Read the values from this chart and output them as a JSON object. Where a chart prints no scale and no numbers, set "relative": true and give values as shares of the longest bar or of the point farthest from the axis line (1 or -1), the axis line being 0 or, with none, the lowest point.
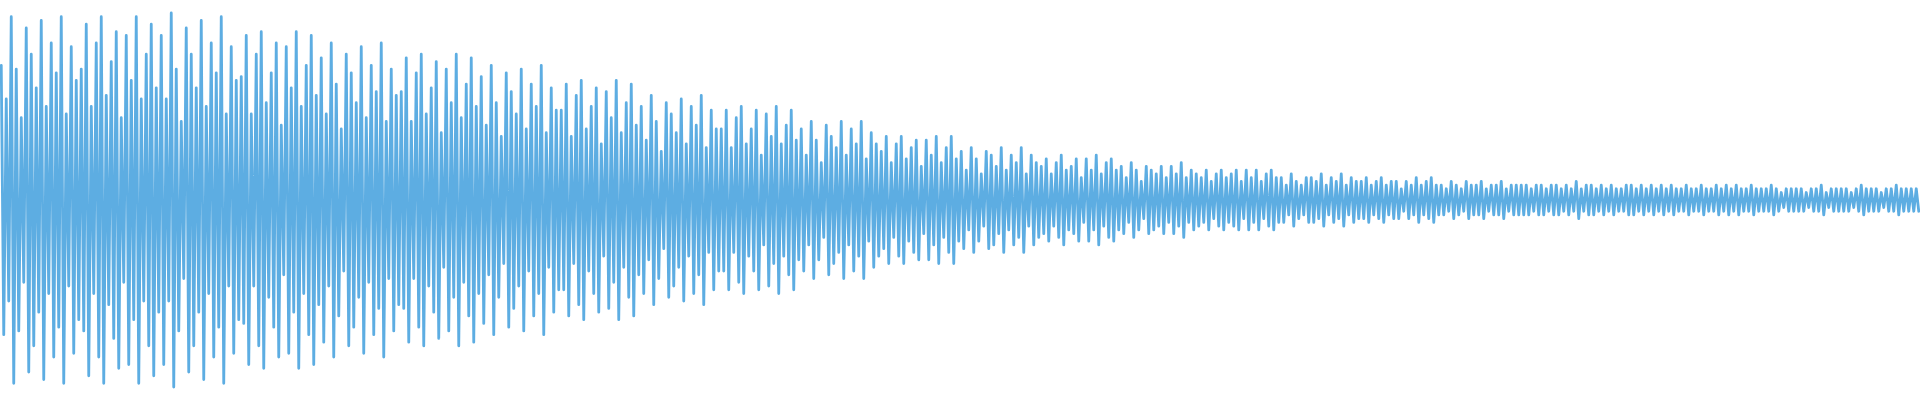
{
  "chart_data": {
    "type": "line",
    "relative": true,
    "color": "#5dade2",
    "categories": [
      null,
      null,
      null,
      null,
      null,
      null,
      null,
      null,
      null,
      null,
      null,
      null,
      null,
      null,
      null,
      null,
      null,
      null,
      null,
      null,
      null,
      null,
      null,
      null,
      null,
      null,
      null,
      null,
      null,
      null,
      null,
      null,
      null,
      null,
      null,
      null,
      null,
      null,
      null,
      null,
      null,
      null,
      null,
      null,
      null,
      null,
      null,
      null,
      null,
      null,
      null,
      null,
      null,
      null,
      null,
      null,
      null,
      null,
      null,
      null,
      null,
      null,
      null,
      null,
      null,
      null,
      null,
      null,
      null,
      null,
      null,
      null,
      null,
      null,
      null,
      null,
      null,
      null,
      null,
      null,
      null,
      null,
      null,
      null,
      null,
      null,
      null,
      null,
      null,
      null,
      null,
      null,
      null,
      null,
      null,
      null,
      null,
      null,
      null,
      null,
      null,
      null,
      null,
      null,
      null,
      null,
      null,
      null,
      null,
      null,
      null,
      null,
      null,
      null,
      null,
      null,
      null,
      null,
      null,
      null,
      null,
      null,
      null,
      null,
      null,
      null,
      null,
      null,
      null,
      null,
      null,
      null,
      null,
      null,
      null,
      null,
      null,
      null,
      null,
      null,
      null,
      null,
      null,
      null,
      null,
      null,
      null,
      null,
      null,
      null,
      null,
      null,
      null,
      null,
      null,
      null,
      null,
      null,
      null,
      null,
      null,
      null,
      null,
      null,
      null,
      null,
      null,
      null,
      null,
      null,
      null,
      null,
      null,
      null,
      null,
      null,
      null,
      null,
      null,
      null,
      null,
      null,
      null,
      null,
      null,
      null,
      null,
      null,
      null,
      null,
      null,
      null,
      null,
      null,
      null,
      null,
      null,
      null,
      null,
      null,
      null,
      null,
      null,
      null,
      null,
      null,
      null,
      null,
      null,
      null,
      null,
      null,
      null,
      null,
      null,
      null,
      null,
      null,
      null,
      null,
      null,
      null,
      null,
      null,
      null,
      null,
      null,
      null,
      null,
      null,
      null,
      null,
      null,
      null,
      null,
      null,
      null,
      null,
      null,
      null,
      null,
      null,
      null,
      null,
      null,
      null,
      null,
      null,
      null,
      null,
      null,
      null,
      null,
      null,
      null,
      null,
      null,
      null,
      null,
      null,
      null,
      null,
      null,
      null,
      null,
      null,
      null,
      null,
      null,
      null,
      null,
      null,
      null,
      null,
      null,
      null,
      null,
      null,
      null,
      null,
      null,
      null,
      null,
      null,
      null,
      null,
      null,
      null,
      null,
      null,
      null,
      null,
      null,
      null,
      null,
      null,
      null,
      null,
      null,
      null,
      null,
      null,
      null,
      null,
      null,
      null,
      null,
      null,
      null,
      null,
      null,
      null,
      null,
      null,
      null,
      null,
      null,
      null,
      null,
      null,
      null,
      null,
      null,
      null,
      null,
      null,
      null,
      null,
      null,
      null,
      null,
      null,
      null,
      null,
      null,
      null,
      null,
      null,
      null,
      null,
      null,
      null,
      null,
      null,
      null,
      null,
      null,
      null,
      null,
      null,
      null,
      null,
      null,
      null,
      null,
      null,
      null,
      null,
      null,
      null,
      null,
      null,
      null,
      null,
      null,
      null,
      null,
      null,
      null,
      null,
      null,
      null,
      null,
      null,
      null,
      null,
      null,
      null,
      null,
      null,
      null,
      null,
      null,
      null,
      null,
      null,
      null,
      null,
      null,
      null,
      null,
      null,
      null,
      null,
      null,
      null,
      null,
      null,
      null,
      null,
      null,
      null,
      null,
      null,
      null,
      null,
      null,
      null,
      null,
      null,
      null,
      null,
      null,
      null,
      null,
      null,
      null,
      null,
      null,
      null,
      null,
      null,
      null,
      null,
      null,
      null,
      null,
      null,
      null,
      null,
      null,
      null,
      null,
      null,
      null,
      null,
      null,
      null,
      null,
      null,
      null,
      null,
      null,
      null,
      null,
      null,
      null,
      null,
      null,
      null,
      null,
      null,
      null,
      null,
      null,
      null,
      null,
      null,
      null,
      null,
      null,
      null,
      null,
      null,
      null,
      null,
      null,
      null,
      null,
      null,
      null,
      null,
      null,
      null,
      null,
      null,
      null,
      null,
      null,
      null,
      null,
      null,
      null,
      null,
      null,
      null,
      null,
      null,
      null,
      null,
      null,
      null,
      null,
      null,
      null,
      null,
      null,
      null,
      null,
      null,
      null,
      null,
      null,
      null,
      null,
      null,
      null,
      null,
      null,
      null,
      null,
      null,
      null,
      null,
      null,
      null,
      null,
      null,
      null,
      null,
      null,
      null,
      null,
      null,
      null,
      null,
      null,
      null,
      null,
      null,
      null,
      null,
      null,
      null,
      null,
      null,
      null,
      null,
      null,
      null,
      null,
      null,
      null,
      null,
      null,
      null,
      null,
      null,
      null,
      null,
      null,
      null,
      null,
      null,
      null,
      null,
      null,
      null,
      null,
      null,
      null,
      null,
      null,
      null,
      null,
      null,
      null,
      null,
      null,
      null,
      null,
      null,
      null,
      null,
      null,
      null,
      null,
      null,
      null,
      null,
      null,
      null,
      null,
      null,
      null,
      null,
      null,
      null,
      null,
      null,
      null,
      null,
      null,
      null,
      null,
      null,
      null,
      null,
      null,
      null,
      null,
      null,
      null,
      null,
      null,
      null,
      null,
      null,
      null,
      null,
      null,
      null,
      null,
      null,
      null,
      null,
      null,
      null,
      null,
      null,
      null,
      null,
      null,
      null,
      null,
      null,
      null,
      null,
      null,
      null,
      null,
      null,
      null,
      null,
      null,
      null,
      null,
      null,
      null,
      null,
      null,
      null,
      null,
      null,
      null,
      null,
      null,
      null,
      null,
      null,
      null,
      null,
      null,
      null,
      null,
      null,
      null,
      null,
      null,
      null,
      null,
      null,
      null,
      null,
      null,
      null,
      null,
      null,
      null,
      null,
      null,
      null,
      null,
      null,
      null,
      null,
      null,
      null,
      null,
      null,
      null,
      null,
      null,
      null,
      null,
      null,
      null,
      null,
      null,
      null,
      null,
      null,
      null,
      null,
      null,
      null,
      null,
      null,
      null,
      null,
      null,
      null,
      null,
      null,
      null,
      null,
      null,
      null,
      null,
      null,
      null,
      null,
      null,
      null,
      null,
      null,
      null,
      null,
      null,
      null,
      null,
      null,
      null,
      null,
      null,
      null,
      null,
      null,
      null,
      null,
      null,
      null,
      null,
      null,
      null,
      null,
      null,
      null,
      null,
      null,
      null,
      null,
      null,
      null,
      null,
      null,
      null,
      null,
      null,
      null,
      null,
      null,
      null,
      null,
      null,
      null,
      null,
      null,
      null,
      null,
      null,
      null,
      null,
      null,
      null,
      null,
      null,
      null
    ],
    "values": [
      0.86,
      0.14,
      0.77,
      0.23,
      0.99,
      0.01,
      0.85,
      0.15,
      0.72,
      0.28,
      0.96,
      0.04,
      0.89,
      0.11,
      0.8,
      0.2,
      0.98,
      0.02,
      0.75,
      0.25,
      0.92,
      0.08,
      0.84,
      0.16,
      0.99,
      0.01,
      0.73,
      0.27,
      0.91,
      0.09,
      0.82,
      0.18,
      0.85,
      0.15,
      0.97,
      0.03,
      0.75,
      0.25,
      0.92,
      0.08,
      0.99,
      0.01,
      0.78,
      0.22,
      0.87,
      0.13,
      0.95,
      0.05,
      0.72,
      0.28,
      0.94,
      0.06,
      0.82,
      0.18,
      0.99,
      0.01,
      0.77,
      0.23,
      0.89,
      0.11,
      0.97,
      0.03,
      0.8,
      0.2,
      0.94,
      0.06,
      0.77,
      0.23,
      1,
      0,
      0.85,
      0.15,
      0.71,
      0.29,
      0.96,
      0.04,
      0.89,
      0.11,
      0.8,
      0.2,
      0.98,
      0.02,
      0.75,
      0.25,
      0.92,
      0.08,
      0.84,
      0.16,
      0.99,
      0.01,
      0.73,
      0.27,
      0.91,
      0.09,
      0.82,
      0.18,
      0.83,
      0.17,
      0.94,
      0.06,
      0.73,
      0.27,
      0.89,
      0.11,
      0.95,
      0.05,
      0.76,
      0.24,
      0.84,
      0.16,
      0.92,
      0.08,
      0.7,
      0.3,
      0.91,
      0.09,
      0.8,
      0.2,
      0.95,
      0.05,
      0.75,
      0.25,
      0.86,
      0.14,
      0.94,
      0.06,
      0.78,
      0.22,
      0.88,
      0.12,
      0.73,
      0.27,
      0.92,
      0.08,
      0.81,
      0.19,
      0.69,
      0.31,
      0.89,
      0.11,
      0.84,
      0.16,
      0.76,
      0.24,
      0.91,
      0.09,
      0.72,
      0.28,
      0.86,
      0.14,
      0.79,
      0.21,
      0.92,
      0.08,
      0.71,
      0.29,
      0.85,
      0.15,
      0.78,
      0.22,
      0.79,
      0.21,
      0.88,
      0.12,
      0.71,
      0.29,
      0.84,
      0.16,
      0.89,
      0.11,
      0.73,
      0.27,
      0.8,
      0.2,
      0.87,
      0.13,
      0.68,
      0.32,
      0.85,
      0.15,
      0.76,
      0.24,
      0.89,
      0.11,
      0.72,
      0.28,
      0.81,
      0.19,
      0.88,
      0.12,
      0.75,
      0.25,
      0.83,
      0.17,
      0.7,
      0.3,
      0.86,
      0.14,
      0.76,
      0.24,
      0.67,
      0.33,
      0.84,
      0.16,
      0.79,
      0.21,
      0.73,
      0.27,
      0.85,
      0.15,
      0.69,
      0.31,
      0.81,
      0.19,
      0.75,
      0.25,
      0.86,
      0.14,
      0.68,
      0.32,
      0.8,
      0.2,
      0.74,
      0.26,
      0.74,
      0.26,
      0.81,
      0.19,
      0.67,
      0.33,
      0.78,
      0.22,
      0.82,
      0.18,
      0.69,
      0.31,
      0.75,
      0.25,
      0.8,
      0.2,
      0.65,
      0.35,
      0.79,
      0.21,
      0.72,
      0.28,
      0.82,
      0.18,
      0.68,
      0.32,
      0.76,
      0.24,
      0.81,
      0.19,
      0.7,
      0.3,
      0.75,
      0.25,
      0.66,
      0.34,
      0.78,
      0.22,
      0.71,
      0.29,
      0.63,
      0.37,
      0.76,
      0.24,
      0.73,
      0.27,
      0.68,
      0.32,
      0.77,
      0.23,
      0.65,
      0.35,
      0.75,
      0.25,
      0.7,
      0.3,
      0.78,
      0.22,
      0.64,
      0.36,
      0.74,
      0.26,
      0.69,
      0.31,
      0.69,
      0.31,
      0.74,
      0.26,
      0.64,
      0.36,
      0.72,
      0.28,
      0.75,
      0.25,
      0.65,
      0.35,
      0.69,
      0.31,
      0.74,
      0.26,
      0.62,
      0.38,
      0.73,
      0.27,
      0.67,
      0.33,
      0.75,
      0.25,
      0.65,
      0.35,
      0.7,
      0.3,
      0.74,
      0.26,
      0.66,
      0.34,
      0.69,
      0.31,
      0.62,
      0.38,
      0.71,
      0.29,
      0.66,
      0.34,
      0.6,
      0.4,
      0.7,
      0.3,
      0.67,
      0.33,
      0.64,
      0.36,
      0.71,
      0.29,
      0.62,
      0.38,
      0.69,
      0.31,
      0.65,
      0.35,
      0.71,
      0.29,
      0.61,
      0.39,
      0.68,
      0.32,
      0.65,
      0.35,
      0.63,
      0.37,
      0.67,
      0.33,
      0.6,
      0.4,
      0.65,
      0.35,
      0.67,
      0.33,
      0.61,
      0.39,
      0.64,
      0.36,
      0.66,
      0.34,
      0.59,
      0.41,
      0.66,
      0.34,
      0.62,
      0.38,
      0.67,
      0.33,
      0.6,
      0.4,
      0.64,
      0.36,
      0.67,
      0.33,
      0.61,
      0.39,
      0.63,
      0.37,
      0.58,
      0.42,
      0.64,
      0.36,
      0.61,
      0.39,
      0.57,
      0.43,
      0.63,
      0.37,
      0.62,
      0.38,
      0.59,
      0.41,
      0.64,
      0.36,
      0.58,
      0.42,
      0.62,
      0.38,
      0.6,
      0.4,
      0.64,
      0.36,
      0.57,
      0.43,
      0.62,
      0.38,
      0.6,
      0.4,
      0.59,
      0.41,
      0.61,
      0.39,
      0.57,
      0.43,
      0.6,
      0.4,
      0.62,
      0.38,
      0.58,
      0.42,
      0.59,
      0.41,
      0.61,
      0.39,
      0.56,
      0.44,
      0.61,
      0.39,
      0.58,
      0.42,
      0.62,
      0.38,
      0.57,
      0.43,
      0.6,
      0.4,
      0.61,
      0.39,
      0.58,
      0.42,
      0.59,
      0.41,
      0.56,
      0.44,
      0.6,
      0.4,
      0.58,
      0.42,
      0.55,
      0.45,
      0.59,
      0.41,
      0.58,
      0.42,
      0.57,
      0.43,
      0.59,
      0.41,
      0.56,
      0.44,
      0.59,
      0.41,
      0.57,
      0.43,
      0.6,
      0.4,
      0.56,
      0.44,
      0.58,
      0.42,
      0.57,
      0.43,
      0.56,
      0.44,
      0.58,
      0.42,
      0.55,
      0.45,
      0.57,
      0.43,
      0.58,
      0.42,
      0.56,
      0.44,
      0.57,
      0.43,
      0.58,
      0.42,
      0.55,
      0.45,
      0.58,
      0.42,
      0.56,
      0.44,
      0.58,
      0.42,
      0.55,
      0.45,
      0.57,
      0.43,
      0.58,
      0.42,
      0.56,
      0.44,
      0.56,
      0.44,
      0.54,
      0.46,
      0.57,
      0.43,
      0.55,
      0.45,
      0.54,
      0.46,
      0.56,
      0.44,
      0.56,
      0.44,
      0.55,
      0.45,
      0.57,
      0.43,
      0.54,
      0.46,
      0.56,
      0.44,
      0.55,
      0.45,
      0.57,
      0.43,
      0.54,
      0.46,
      0.56,
      0.44,
      0.55,
      0.45,
      0.55,
      0.45,
      0.56,
      0.44,
      0.54,
      0.46,
      0.55,
      0.45,
      0.56,
      0.44,
      0.54,
      0.46,
      0.55,
      0.45,
      0.55,
      0.45,
      0.53,
      0.47,
      0.55,
      0.45,
      0.54,
      0.46,
      0.56,
      0.44,
      0.54,
      0.46,
      0.55,
      0.45,
      0.56,
      0.44,
      0.54,
      0.46,
      0.54,
      0.46,
      0.53,
      0.47,
      0.55,
      0.45,
      0.54,
      0.46,
      0.53,
      0.47,
      0.55,
      0.45,
      0.54,
      0.46,
      0.54,
      0.46,
      0.55,
      0.45,
      0.53,
      0.47,
      0.54,
      0.46,
      0.54,
      0.46,
      0.55,
      0.45,
      0.53,
      0.47,
      0.54,
      0.46,
      0.54,
      0.46,
      0.54,
      0.46,
      0.54,
      0.46,
      0.53,
      0.47,
      0.54,
      0.46,
      0.54,
      0.46,
      0.53,
      0.47,
      0.54,
      0.46,
      0.54,
      0.46,
      0.53,
      0.47,
      0.54,
      0.46,
      0.53,
      0.47,
      0.55,
      0.45,
      0.53,
      0.47,
      0.54,
      0.46,
      0.54,
      0.46,
      0.53,
      0.47,
      0.54,
      0.46,
      0.53,
      0.47,
      0.54,
      0.46,
      0.53,
      0.47,
      0.53,
      0.47,
      0.54,
      0.46,
      0.54,
      0.46,
      0.53,
      0.47,
      0.54,
      0.46,
      0.53,
      0.47,
      0.54,
      0.46,
      0.53,
      0.47,
      0.54,
      0.46,
      0.53,
      0.47,
      0.54,
      0.46,
      0.53,
      0.47,
      0.53,
      0.47,
      0.54,
      0.46,
      0.53,
      0.47,
      0.53,
      0.47,
      0.54,
      0.46,
      0.53,
      0.47,
      0.53,
      0.47,
      0.54,
      0.46,
      0.53,
      0.47,
      0.54,
      0.46,
      0.53,
      0.47,
      0.54,
      0.46,
      0.53,
      0.47,
      0.53,
      0.47,
      0.54,
      0.46,
      0.53,
      0.47,
      0.53,
      0.47,
      0.53,
      0.47,
      0.54,
      0.46,
      0.53,
      0.47,
      0.52,
      0.48,
      0.53,
      0.47,
      0.53,
      0.47,
      0.53,
      0.47,
      0.53,
      0.47,
      0.52,
      0.48,
      0.53,
      0.47,
      0.53,
      0.47,
      0.54,
      0.46,
      0.52,
      0.48,
      0.53,
      0.47,
      0.53,
      0.47,
      0.53,
      0.47,
      0.53,
      0.47,
      0.52,
      0.48,
      0.53,
      0.47,
      0.54,
      0.46,
      0.53,
      0.47,
      0.53,
      0.47,
      0.53,
      0.47,
      0.52,
      0.48,
      0.53,
      0.47,
      0.53,
      0.47,
      0.54,
      0.46,
      0.53,
      0.47,
      0.53,
      0.47,
      0.53,
      0.47,
      0.53,
      0.47
    ]
  }
}
